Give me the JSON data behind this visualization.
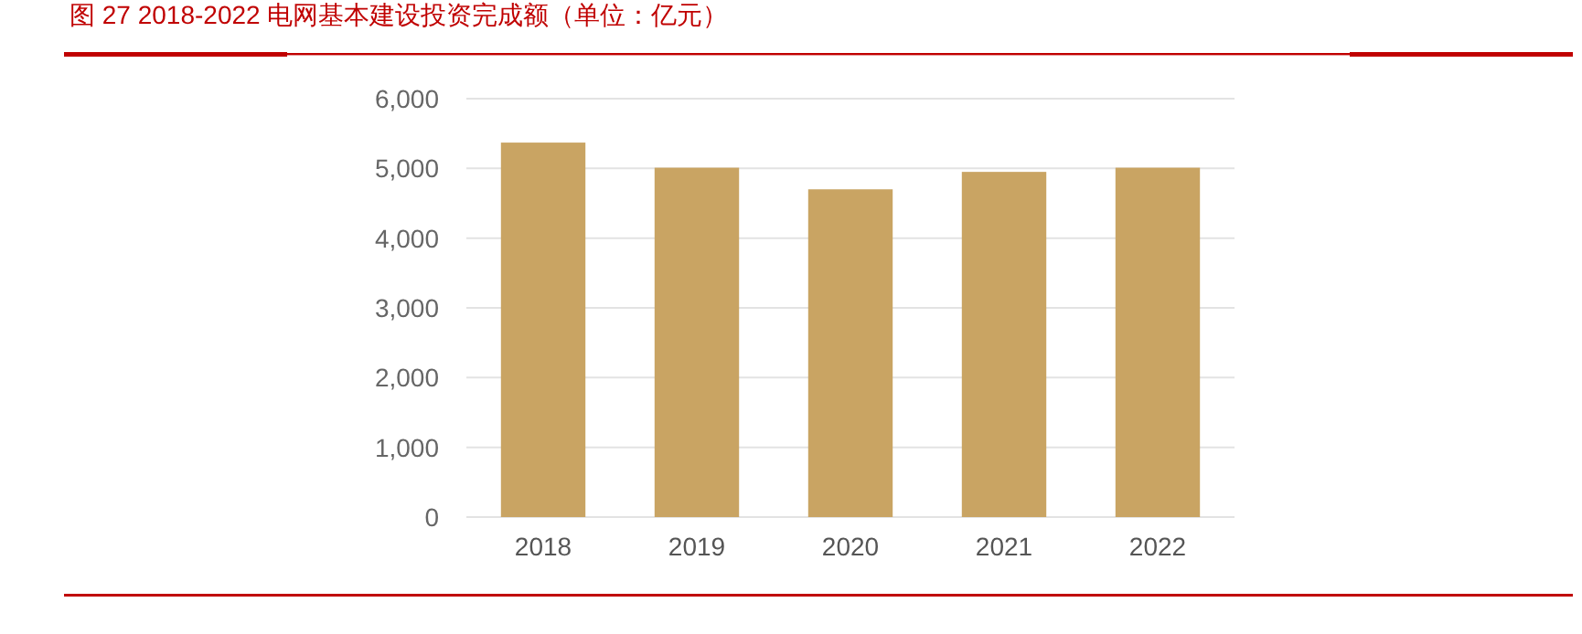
{
  "chart_data": {
    "type": "bar",
    "title": "图 27  2018-2022 电网基本建设投资完成额（单位：亿元）",
    "categories": [
      "2018",
      "2019",
      "2020",
      "2021",
      "2022"
    ],
    "values": [
      5370,
      5010,
      4700,
      4950,
      5010
    ],
    "color": "#c9a463",
    "ylim": [
      0,
      6000
    ],
    "yticks": [
      {
        "value": 0,
        "label": "0"
      },
      {
        "value": 1000,
        "label": "1,000"
      },
      {
        "value": 2000,
        "label": "2,000"
      },
      {
        "value": 3000,
        "label": "3,000"
      },
      {
        "value": 4000,
        "label": "4,000"
      },
      {
        "value": 5000,
        "label": "5,000"
      },
      {
        "value": 6000,
        "label": "6,000"
      }
    ],
    "grid": "y"
  }
}
